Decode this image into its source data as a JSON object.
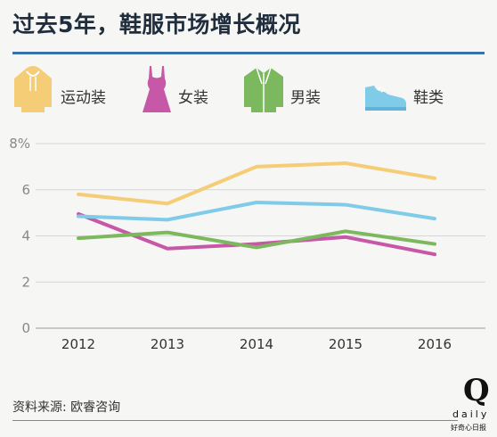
{
  "title": "过去5年，鞋服市场增长概况",
  "legend": [
    {
      "label": "运动装",
      "icon": "hoodie-icon",
      "color": "#f5cd76"
    },
    {
      "label": "女装",
      "icon": "dress-icon",
      "color": "#c757a7"
    },
    {
      "label": "男装",
      "icon": "jacket-icon",
      "color": "#7cb85d"
    },
    {
      "label": "鞋类",
      "icon": "shoe-icon",
      "color": "#80cbe8"
    }
  ],
  "chart_data": {
    "type": "line",
    "x": [
      "2012",
      "2013",
      "2014",
      "2015",
      "2016"
    ],
    "ylim": [
      0,
      8
    ],
    "yticks": [
      "0",
      "2",
      "4",
      "6",
      "8%"
    ],
    "grid": true,
    "series": [
      {
        "name": "运动装",
        "color": "#f5cd76",
        "values": [
          5.8,
          5.4,
          7.0,
          7.15,
          6.5
        ]
      },
      {
        "name": "女装",
        "color": "#c757a7",
        "values": [
          4.95,
          3.45,
          3.65,
          3.95,
          3.2
        ]
      },
      {
        "name": "男装",
        "color": "#7cb85d",
        "values": [
          3.9,
          4.15,
          3.5,
          4.2,
          3.65
        ]
      },
      {
        "name": "鞋类",
        "color": "#80cbe8",
        "values": [
          4.85,
          4.7,
          5.45,
          5.35,
          4.75
        ]
      }
    ]
  },
  "source": "资料来源: 欧睿咨询",
  "logo": {
    "mark": "Q",
    "word": "daily",
    "sub": "好奇心日报"
  }
}
